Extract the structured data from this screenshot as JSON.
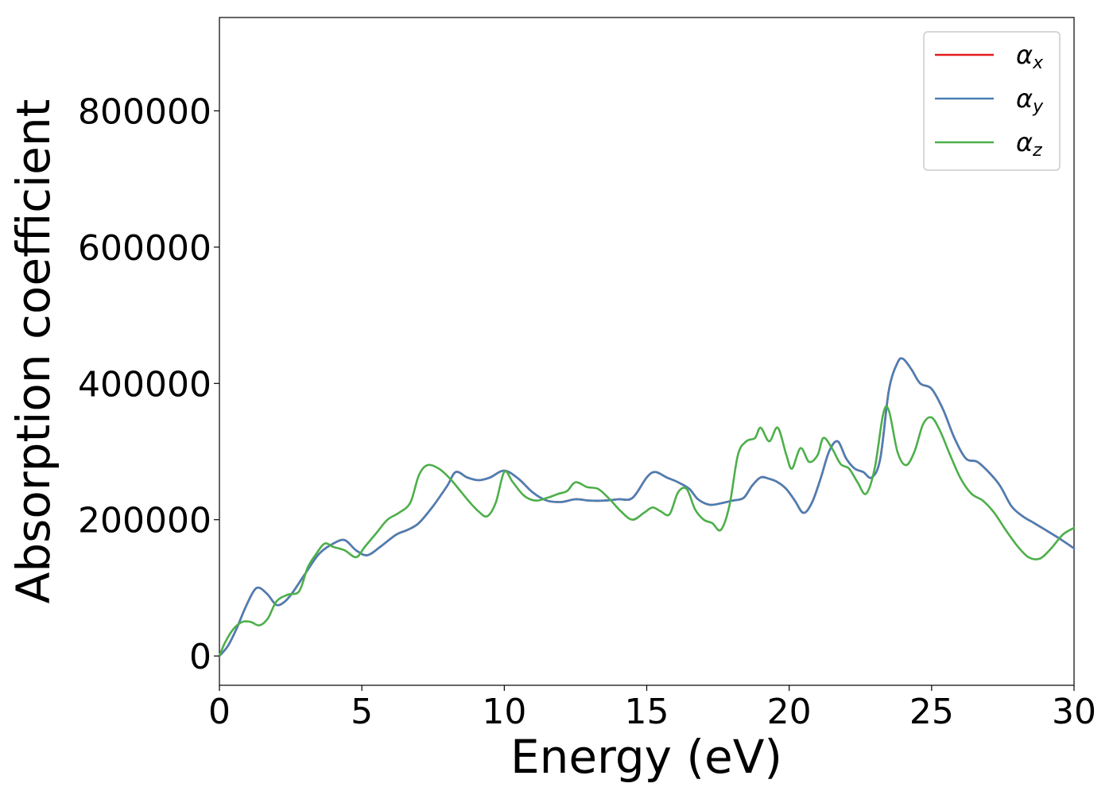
{
  "chart_data": {
    "type": "line",
    "xlabel": "Energy (eV)",
    "ylabel": "Absorption coefficient",
    "xlim": [
      0,
      30
    ],
    "ylim": [
      -43000,
      937000
    ],
    "x_ticks": [
      0,
      5,
      10,
      15,
      20,
      25,
      30
    ],
    "x_tick_labels": [
      "0",
      "5",
      "10",
      "15",
      "20",
      "25",
      "30"
    ],
    "y_ticks": [
      0,
      200000,
      400000,
      600000,
      800000
    ],
    "y_tick_labels": [
      "0",
      "200000",
      "400000",
      "600000",
      "800000"
    ],
    "grid": false,
    "legend_position": "top-right",
    "series": [
      {
        "name": "αx",
        "symbol": "α",
        "subscript": "x",
        "color": "#e41a1c",
        "x": [
          0,
          0.3,
          0.6,
          0.9,
          1.2,
          1.4,
          1.7,
          2.0,
          2.3,
          2.6,
          3.0,
          3.5,
          4.0,
          4.4,
          4.8,
          5.2,
          5.7,
          6.2,
          6.6,
          7.0,
          7.5,
          8.0,
          8.3,
          8.7,
          9.1,
          9.5,
          10.0,
          10.5,
          11.0,
          11.5,
          12.0,
          12.5,
          13.0,
          13.5,
          14.0,
          14.5,
          15.0,
          15.3,
          15.7,
          16.1,
          16.5,
          16.8,
          17.2,
          17.6,
          18.0,
          18.4,
          18.7,
          19.0,
          19.3,
          19.6,
          19.9,
          20.2,
          20.5,
          20.8,
          21.1,
          21.4,
          21.7,
          22.0,
          22.3,
          22.6,
          22.9,
          23.2,
          23.5,
          23.8,
          24.0,
          24.3,
          24.6,
          25.0,
          25.4,
          25.8,
          26.2,
          26.6,
          27.0,
          27.4,
          27.8,
          28.2,
          28.6,
          29.0,
          29.5,
          30.0
        ],
        "values": [
          0,
          15000,
          40000,
          70000,
          95000,
          100000,
          90000,
          75000,
          80000,
          95000,
          120000,
          150000,
          165000,
          170000,
          155000,
          148000,
          162000,
          178000,
          185000,
          195000,
          220000,
          250000,
          270000,
          262000,
          258000,
          262000,
          272000,
          260000,
          240000,
          228000,
          226000,
          230000,
          228000,
          228000,
          230000,
          232000,
          262000,
          270000,
          262000,
          255000,
          245000,
          230000,
          222000,
          224000,
          228000,
          232000,
          250000,
          262000,
          260000,
          255000,
          245000,
          228000,
          210000,
          225000,
          260000,
          300000,
          315000,
          290000,
          275000,
          270000,
          262000,
          290000,
          390000,
          430000,
          436000,
          420000,
          400000,
          392000,
          362000,
          320000,
          290000,
          285000,
          270000,
          250000,
          220000,
          205000,
          195000,
          185000,
          172000,
          158000
        ]
      },
      {
        "name": "αy",
        "symbol": "α",
        "subscript": "y",
        "color": "#4a7fb5",
        "x": [
          0,
          0.3,
          0.6,
          0.9,
          1.2,
          1.4,
          1.7,
          2.0,
          2.3,
          2.6,
          3.0,
          3.5,
          4.0,
          4.4,
          4.8,
          5.2,
          5.7,
          6.2,
          6.6,
          7.0,
          7.5,
          8.0,
          8.3,
          8.7,
          9.1,
          9.5,
          10.0,
          10.5,
          11.0,
          11.5,
          12.0,
          12.5,
          13.0,
          13.5,
          14.0,
          14.5,
          15.0,
          15.3,
          15.7,
          16.1,
          16.5,
          16.8,
          17.2,
          17.6,
          18.0,
          18.4,
          18.7,
          19.0,
          19.3,
          19.6,
          19.9,
          20.2,
          20.5,
          20.8,
          21.1,
          21.4,
          21.7,
          22.0,
          22.3,
          22.6,
          22.9,
          23.2,
          23.5,
          23.8,
          24.0,
          24.3,
          24.6,
          25.0,
          25.4,
          25.8,
          26.2,
          26.6,
          27.0,
          27.4,
          27.8,
          28.2,
          28.6,
          29.0,
          29.5,
          30.0
        ],
        "values": [
          0,
          15000,
          40000,
          70000,
          95000,
          100000,
          90000,
          75000,
          80000,
          95000,
          120000,
          150000,
          165000,
          170000,
          155000,
          148000,
          162000,
          178000,
          185000,
          195000,
          220000,
          250000,
          270000,
          262000,
          258000,
          262000,
          272000,
          260000,
          240000,
          228000,
          226000,
          230000,
          228000,
          228000,
          230000,
          232000,
          262000,
          270000,
          262000,
          255000,
          245000,
          230000,
          222000,
          224000,
          228000,
          232000,
          250000,
          262000,
          260000,
          255000,
          245000,
          228000,
          210000,
          225000,
          260000,
          300000,
          315000,
          290000,
          275000,
          270000,
          262000,
          290000,
          390000,
          430000,
          436000,
          420000,
          400000,
          392000,
          362000,
          320000,
          290000,
          285000,
          270000,
          250000,
          220000,
          205000,
          195000,
          185000,
          172000,
          158000
        ]
      },
      {
        "name": "αz",
        "symbol": "α",
        "subscript": "z",
        "color": "#4daf4a",
        "x": [
          0,
          0.2,
          0.5,
          0.8,
          1.1,
          1.4,
          1.7,
          2.0,
          2.4,
          2.8,
          3.1,
          3.4,
          3.7,
          4.0,
          4.4,
          4.8,
          5.1,
          5.5,
          5.9,
          6.3,
          6.7,
          7.0,
          7.3,
          7.7,
          8.1,
          8.5,
          8.8,
          9.1,
          9.4,
          9.7,
          10.0,
          10.3,
          10.7,
          11.1,
          11.5,
          11.9,
          12.2,
          12.5,
          12.9,
          13.3,
          13.7,
          14.1,
          14.5,
          14.9,
          15.2,
          15.5,
          15.8,
          16.1,
          16.4,
          16.7,
          17.0,
          17.3,
          17.6,
          17.9,
          18.2,
          18.5,
          18.8,
          19.0,
          19.3,
          19.6,
          19.9,
          20.1,
          20.4,
          20.7,
          21.0,
          21.2,
          21.5,
          21.8,
          22.1,
          22.4,
          22.7,
          23.0,
          23.3,
          23.5,
          23.8,
          24.1,
          24.4,
          24.7,
          25.0,
          25.3,
          25.6,
          26.0,
          26.4,
          26.8,
          27.2,
          27.6,
          28.0,
          28.4,
          28.8,
          29.2,
          29.6,
          30.0
        ],
        "values": [
          0,
          20000,
          40000,
          50000,
          50000,
          45000,
          55000,
          80000,
          90000,
          95000,
          130000,
          150000,
          165000,
          160000,
          155000,
          145000,
          160000,
          180000,
          200000,
          210000,
          225000,
          265000,
          280000,
          275000,
          260000,
          240000,
          225000,
          212000,
          205000,
          225000,
          270000,
          255000,
          235000,
          228000,
          232000,
          238000,
          242000,
          255000,
          248000,
          245000,
          230000,
          212000,
          200000,
          210000,
          218000,
          212000,
          208000,
          240000,
          245000,
          215000,
          200000,
          195000,
          185000,
          220000,
          295000,
          315000,
          320000,
          335000,
          315000,
          335000,
          295000,
          275000,
          305000,
          285000,
          295000,
          320000,
          305000,
          282000,
          275000,
          255000,
          238000,
          275000,
          355000,
          360000,
          300000,
          280000,
          300000,
          340000,
          350000,
          330000,
          300000,
          262000,
          238000,
          228000,
          210000,
          185000,
          162000,
          145000,
          143000,
          158000,
          178000,
          188000
        ]
      }
    ]
  }
}
